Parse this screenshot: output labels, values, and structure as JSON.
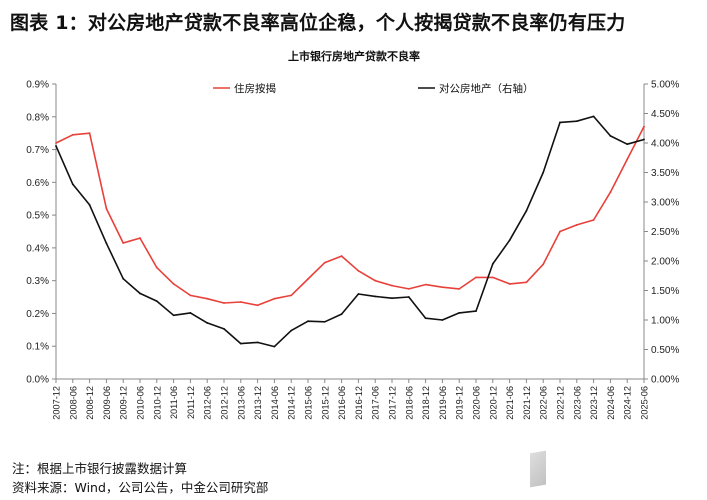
{
  "figure": {
    "title": "图表 1：对公房地产贷款不良率高位企稳，个人按揭贷款不良率仍有压力",
    "note": "注：根据上市银行披露数据计算",
    "source": "资料来源：Wind，公司公告，中金公司研究部"
  },
  "chart_data": {
    "type": "line",
    "title": "上市银行房地产贷款不良率",
    "x": [
      "2007-12",
      "2008-06",
      "2008-12",
      "2009-06",
      "2009-12",
      "2010-06",
      "2010-12",
      "2011-06",
      "2011-12",
      "2012-06",
      "2012-12",
      "2013-06",
      "2013-12",
      "2014-06",
      "2014-12",
      "2015-06",
      "2015-12",
      "2016-06",
      "2016-12",
      "2017-06",
      "2017-12",
      "2018-06",
      "2018-12",
      "2019-06",
      "2019-12",
      "2020-06",
      "2020-12",
      "2021-06",
      "2021-12",
      "2022-06",
      "2022-12",
      "2023-06",
      "2023-12",
      "2024-06",
      "2024-12",
      "2025-06"
    ],
    "left_axis": {
      "ticks": [
        "0.0%",
        "0.1%",
        "0.2%",
        "0.3%",
        "0.4%",
        "0.5%",
        "0.6%",
        "0.7%",
        "0.8%",
        "0.9%"
      ],
      "ylim": [
        0,
        0.9
      ],
      "unit": "%"
    },
    "right_axis": {
      "ticks": [
        "0.00%",
        "0.50%",
        "1.00%",
        "1.50%",
        "2.00%",
        "2.50%",
        "3.00%",
        "3.50%",
        "4.00%",
        "4.50%",
        "5.00%"
      ],
      "ylim": [
        0,
        5.0
      ],
      "unit": "%"
    },
    "grid": false,
    "legend_position": "top",
    "series": [
      {
        "name": "住房按揭",
        "axis": "left",
        "color": "#e8413a",
        "values": [
          0.72,
          0.745,
          0.75,
          0.52,
          0.415,
          0.43,
          0.34,
          0.29,
          0.255,
          0.245,
          0.232,
          0.235,
          0.225,
          0.245,
          0.255,
          0.305,
          0.355,
          0.375,
          0.33,
          0.3,
          0.285,
          0.275,
          0.288,
          0.28,
          0.275,
          0.31,
          0.31,
          0.29,
          0.295,
          0.35,
          0.45,
          0.47,
          0.485,
          0.57,
          0.67,
          0.77
        ]
      },
      {
        "name": "对公房地产（右轴）",
        "axis": "right",
        "color": "#111111",
        "values": [
          3.95,
          3.3,
          2.95,
          2.3,
          1.7,
          1.45,
          1.32,
          1.08,
          1.12,
          0.95,
          0.85,
          0.6,
          0.62,
          0.55,
          0.82,
          0.98,
          0.97,
          1.1,
          1.44,
          1.4,
          1.37,
          1.39,
          1.03,
          1.0,
          1.12,
          1.15,
          1.95,
          2.35,
          2.85,
          3.5,
          4.35,
          4.37,
          4.45,
          4.12,
          3.98,
          4.06
        ]
      }
    ]
  }
}
